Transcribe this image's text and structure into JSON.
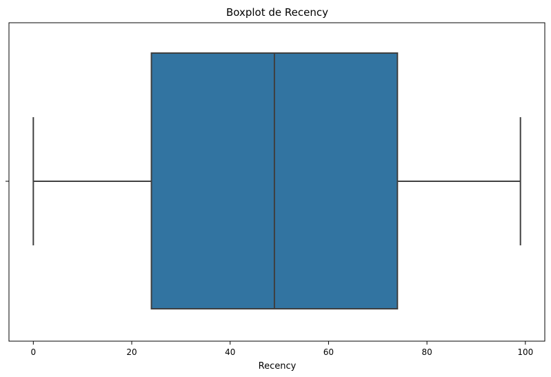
{
  "chart_data": {
    "type": "boxplot",
    "title": "Boxplot de Recency",
    "xlabel": "Recency",
    "ylabel": "",
    "orientation": "horizontal",
    "xlim": [
      -4.95,
      103.95
    ],
    "xticks": [
      0,
      20,
      40,
      60,
      80,
      100
    ],
    "grid": false,
    "box": {
      "min": 0,
      "q1": 24,
      "median": 49,
      "q3": 74,
      "max": 99,
      "color": "#3274a1",
      "line_color": "#3f3f3f"
    }
  }
}
